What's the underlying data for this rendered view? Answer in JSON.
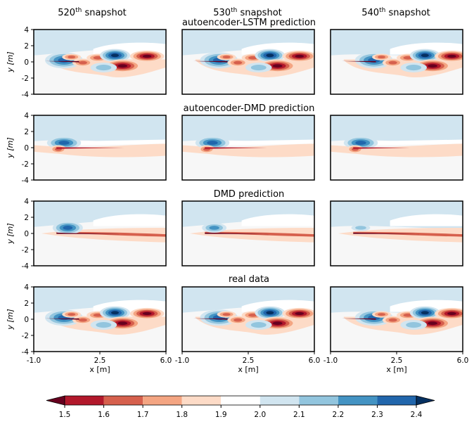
{
  "figure": {
    "col_titles": [
      {
        "n": "520",
        "sup": "th",
        "rest": " snapshot"
      },
      {
        "n": "530",
        "sup": "th",
        "rest": " snapshot"
      },
      {
        "n": "540",
        "sup": "th",
        "rest": " snapshot"
      }
    ],
    "row_titles": [
      "autoencoder-LSTM prediction",
      "autoencoder-DMD prediction",
      "DMD prediction",
      "real data"
    ],
    "xlabel": "x [m]",
    "ylabel": "y [m]"
  },
  "chart_data": {
    "type": "heatmap",
    "rows": 4,
    "cols": 3,
    "xlim": [
      -1.0,
      6.0
    ],
    "ylim": [
      -4,
      4
    ],
    "xticks": [
      "-1.0",
      "2.5",
      "6.0"
    ],
    "yticks": [
      "4",
      "2",
      "0",
      "-2",
      "-4"
    ],
    "xtick_values": [
      -1.0,
      2.5,
      6.0
    ],
    "ytick_values": [
      4,
      2,
      0,
      -2,
      -4
    ],
    "colorbar": {
      "levels": [
        1.5,
        1.6,
        1.7,
        1.8,
        1.9,
        2.0,
        2.1,
        2.2,
        2.3,
        2.4
      ],
      "labels": [
        "1.5",
        "1.6",
        "1.7",
        "1.8",
        "1.9",
        "2.0",
        "2.1",
        "2.2",
        "2.3",
        "2.4"
      ],
      "colors": [
        "#67001f",
        "#b2182b",
        "#d6604d",
        "#f4a582",
        "#fddbc7",
        "#ffffff",
        "#d1e5f0",
        "#92c5de",
        "#4393c3",
        "#2166ac",
        "#053061"
      ],
      "extend": "both"
    },
    "background_colors": {
      "upper": "#d1e5f0",
      "lower": "#f7f7f7",
      "neutral": "#ffffff"
    }
  }
}
